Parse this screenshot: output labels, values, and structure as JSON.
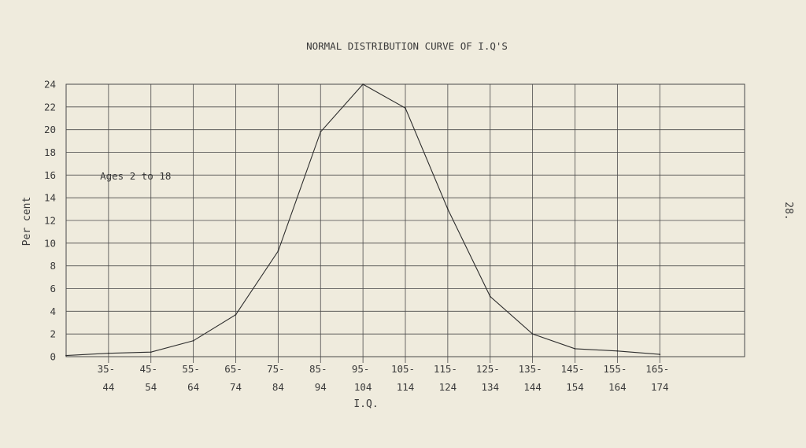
{
  "page_number": "28.",
  "chart_data": {
    "type": "line",
    "title": "NORMAL DISTRIBUTION CURVE OF I.Q'S",
    "xlabel": "I.Q.",
    "ylabel": "Per cent",
    "ylim": [
      0,
      24
    ],
    "yticks": [
      0,
      2,
      4,
      6,
      8,
      10,
      12,
      14,
      16,
      18,
      20,
      22,
      24
    ],
    "x_range": [
      25,
      185
    ],
    "x_tick_positions": [
      35,
      45,
      55,
      65,
      75,
      85,
      95,
      105,
      115,
      125,
      135,
      145,
      155,
      165
    ],
    "x_tick_labels": [
      [
        "35-",
        "44"
      ],
      [
        "45-",
        "54"
      ],
      [
        "55-",
        "64"
      ],
      [
        "65-",
        "74"
      ],
      [
        "75-",
        "84"
      ],
      [
        "85-",
        "94"
      ],
      [
        "95-",
        "104"
      ],
      [
        "105-",
        "114"
      ],
      [
        "115-",
        "124"
      ],
      [
        "125-",
        "134"
      ],
      [
        "135-",
        "144"
      ],
      [
        "145-",
        "154"
      ],
      [
        "155-",
        "164"
      ],
      [
        "165-",
        "174"
      ]
    ],
    "grid": true,
    "series": [
      {
        "name": "",
        "x": [
          25,
          35,
          45,
          55,
          65,
          75,
          85,
          95,
          105,
          115,
          125,
          135,
          145,
          155,
          165
        ],
        "values": [
          0.1,
          0.3,
          0.4,
          1.4,
          3.7,
          9.3,
          19.8,
          24.0,
          21.9,
          13.0,
          5.3,
          2.0,
          0.7,
          0.5,
          0.2
        ]
      }
    ],
    "annotations": [
      {
        "text": "Ages 2 to 18",
        "x": 33,
        "y": 15.9
      }
    ]
  }
}
